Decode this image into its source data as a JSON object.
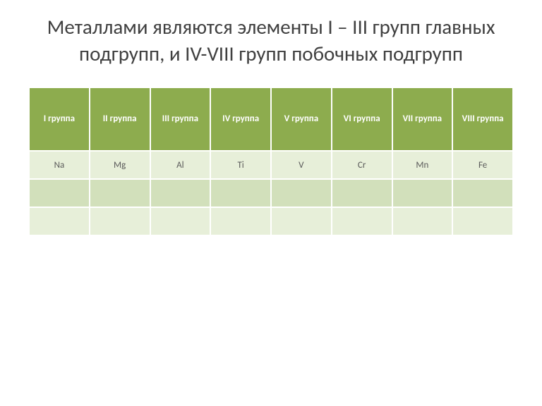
{
  "title": "Металлами являются элементы I – III групп главных подгрупп, и IV-VIII групп побочных подгрупп",
  "table": {
    "type": "table",
    "header_bg": "#8dac4e",
    "header_color": "#ffffff",
    "header_fontsize": 13,
    "header_fontweight": "bold",
    "row_odd_bg": "#e7efd9",
    "row_even_bg": "#d2e0bb",
    "cell_color": "#5a5a5a",
    "cell_fontsize": 13,
    "columns": [
      "I группа",
      "II группа",
      "III группа",
      "IV группа",
      "V группа",
      "VI группа",
      "VII группа",
      "VIII группа"
    ],
    "rows": [
      [
        "Na",
        "Mg",
        "Al",
        "Ti",
        "V",
        "Cr",
        "Mn",
        "Fe"
      ],
      [
        "",
        "",
        "",
        "",
        "",
        "",
        "",
        ""
      ],
      [
        "",
        "",
        "",
        "",
        "",
        "",
        "",
        ""
      ]
    ]
  },
  "title_fontsize": 29,
  "title_color": "#404040",
  "background_color": "#ffffff"
}
